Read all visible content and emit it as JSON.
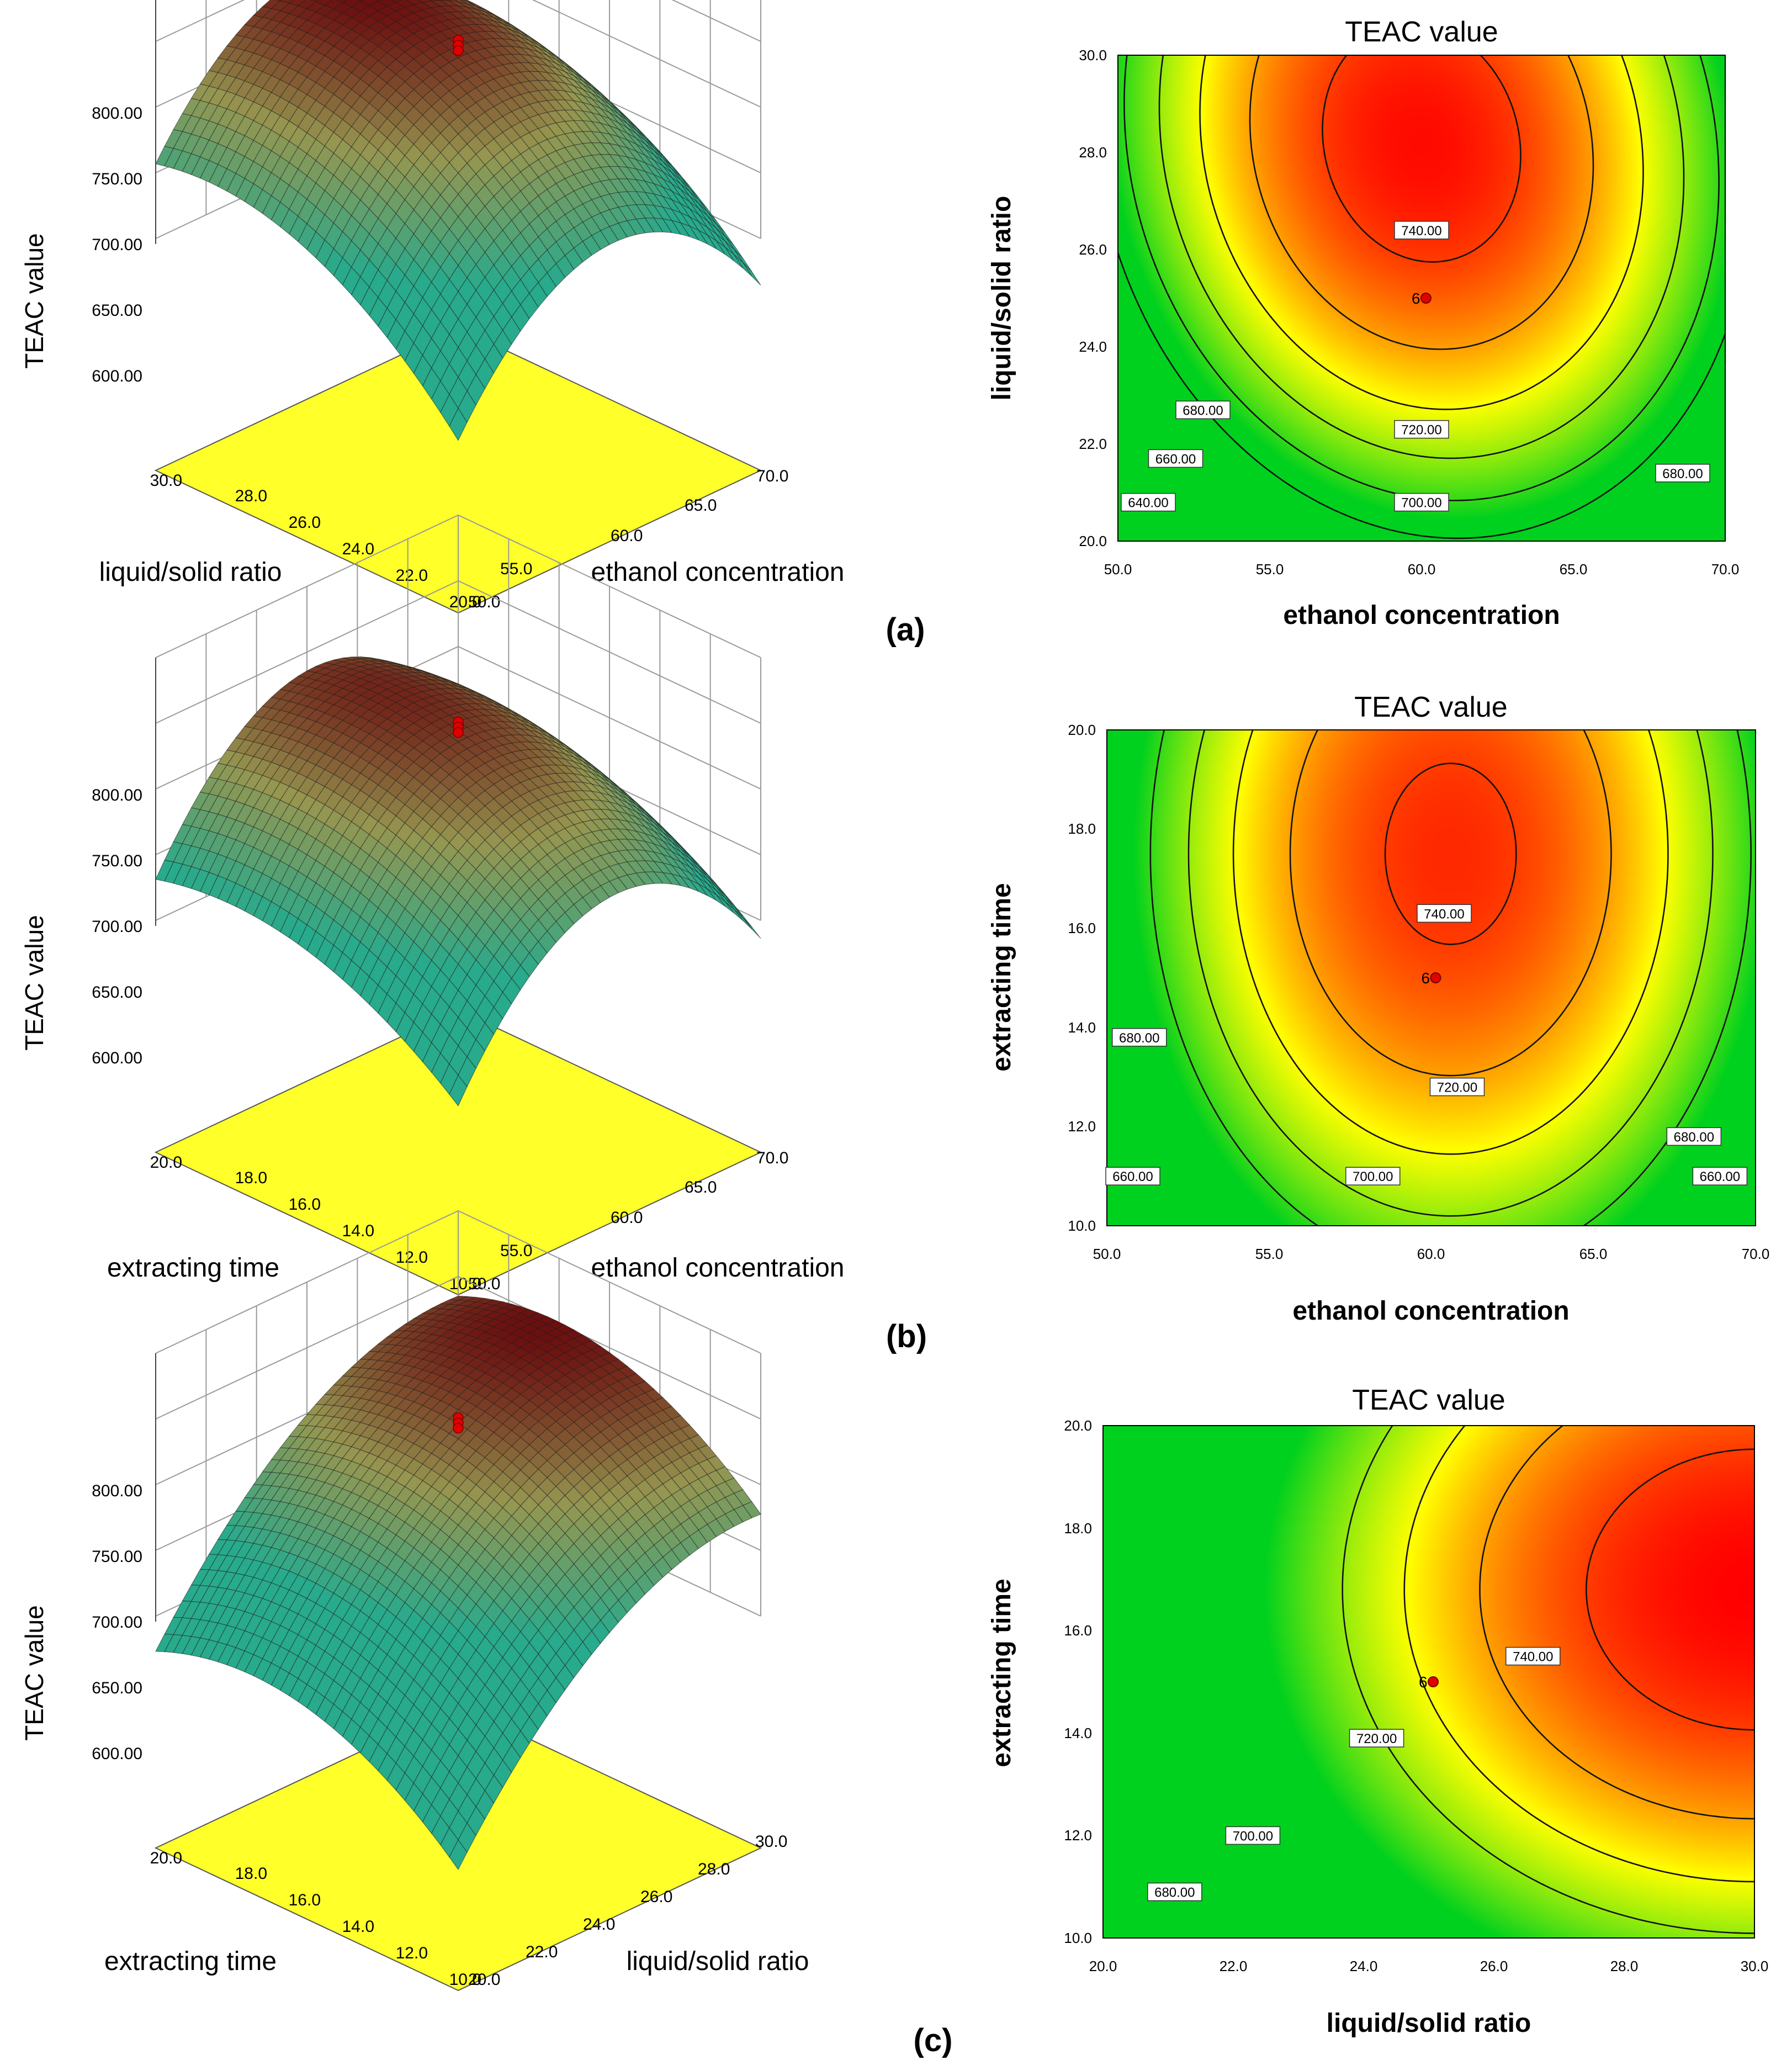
{
  "figure": {
    "colors": {
      "low": "#00d11e",
      "mid": "#ffff00",
      "high": "#ff0000",
      "dark": "#6b0f0f",
      "floor": "#ffff2a",
      "line": "#000000",
      "point": "#e00000"
    },
    "panels": [
      {
        "panel_label": "(a)",
        "surface": {
          "zlabel": "TEAC value",
          "zticks": [
            "600.00",
            "650.00",
            "700.00",
            "750.00",
            "800.00"
          ],
          "left_axis_label": "liquid/solid ratio",
          "left_ticks": [
            "20.0",
            "22.0",
            "24.0",
            "26.0",
            "28.0",
            "30.0"
          ],
          "right_axis_label": "ethanol concentration",
          "right_ticks": [
            "50.0",
            "55.0",
            "60.0",
            "65.0",
            "70.0"
          ]
        },
        "contour": {
          "title": "TEAC value",
          "xlabel": "ethanol concentration",
          "ylabel": "liquid/solid ratio",
          "xticks": [
            "50.0",
            "55.0",
            "60.0",
            "65.0",
            "70.0"
          ],
          "yticks": [
            "20.0",
            "22.0",
            "24.0",
            "26.0",
            "28.0",
            "30.0"
          ],
          "contour_labels": [
            "740.00",
            "720.00",
            "700.00",
            "680.00",
            "660.00",
            "640.00",
            "680.00"
          ],
          "center_label": "6"
        }
      },
      {
        "panel_label": "(b)",
        "surface": {
          "zlabel": "TEAC value",
          "zticks": [
            "600.00",
            "650.00",
            "700.00",
            "750.00",
            "800.00"
          ],
          "left_axis_label": "extracting time",
          "left_ticks": [
            "10.0",
            "12.0",
            "14.0",
            "16.0",
            "18.0",
            "20.0"
          ],
          "right_axis_label": "ethanol concentration",
          "right_ticks": [
            "50.0",
            "55.0",
            "60.0",
            "65.0",
            "70.0"
          ]
        },
        "contour": {
          "title": "TEAC value",
          "xlabel": "ethanol concentration",
          "ylabel": "extracting time",
          "xticks": [
            "50.0",
            "55.0",
            "60.0",
            "65.0",
            "70.0"
          ],
          "yticks": [
            "10.0",
            "12.0",
            "14.0",
            "16.0",
            "18.0",
            "20.0"
          ],
          "contour_labels": [
            "740.00",
            "720.00",
            "700.00",
            "680.00",
            "660.00",
            "680.00",
            "660.00"
          ],
          "center_label": "6"
        }
      },
      {
        "panel_label": "(c)",
        "surface": {
          "zlabel": "TEAC value",
          "zticks": [
            "600.00",
            "650.00",
            "700.00",
            "750.00",
            "800.00"
          ],
          "left_axis_label": "extracting time",
          "left_ticks": [
            "10.0",
            "12.0",
            "14.0",
            "16.0",
            "18.0",
            "20.0"
          ],
          "right_axis_label": "liquid/solid ratio",
          "right_ticks": [
            "20.0",
            "22.0",
            "24.0",
            "26.0",
            "28.0",
            "30.0"
          ]
        },
        "contour": {
          "title": "TEAC value",
          "xlabel": "liquid/solid ratio",
          "ylabel": "extracting time",
          "xticks": [
            "20.0",
            "22.0",
            "24.0",
            "26.0",
            "28.0",
            "30.0"
          ],
          "yticks": [
            "10.0",
            "12.0",
            "14.0",
            "16.0",
            "18.0",
            "20.0"
          ],
          "contour_labels": [
            "740.00",
            "720.00",
            "700.00",
            "680.00"
          ],
          "center_label": "6"
        }
      }
    ]
  },
  "chart_data": [
    {
      "type": "surface",
      "title": "",
      "zlabel": "TEAC value",
      "zlim": [
        600,
        800
      ],
      "xlabel": "liquid/solid ratio",
      "xlim": [
        20,
        30
      ],
      "ylabel": "ethanol concentration",
      "ylim": [
        50,
        70
      ],
      "center": {
        "ratio": 25,
        "ethanol": 60,
        "teac": 745
      },
      "model": {
        "optimum": {
          "ethanol": 60,
          "ratio": 28
        },
        "peak": 752,
        "curvature_ethanol": 90,
        "curvature_ratio": 40,
        "interaction": 12
      }
    },
    {
      "type": "contour",
      "title": "TEAC value",
      "xlabel": "ethanol concentration",
      "xlim": [
        50,
        70
      ],
      "ylabel": "liquid/solid ratio",
      "ylim": [
        20,
        30
      ],
      "levels": [
        640,
        660,
        680,
        700,
        720,
        740
      ],
      "design_points": [
        {
          "x": 60,
          "y": 25,
          "n": 6
        }
      ],
      "model": {
        "x0": 60,
        "y0": 28.2,
        "peak": 750,
        "a": 95,
        "b": 42,
        "c": 14
      }
    },
    {
      "type": "surface",
      "title": "",
      "zlabel": "TEAC value",
      "zlim": [
        600,
        800
      ],
      "xlabel": "extracting time",
      "xlim": [
        10,
        20
      ],
      "ylabel": "ethanol concentration",
      "ylim": [
        50,
        70
      ],
      "center": {
        "time": 15,
        "ethanol": 60,
        "teac": 745
      },
      "model": {
        "optimum": {
          "ethanol": 60.5,
          "time": 17.5
        },
        "peak": 744,
        "curvature_ethanol": 95,
        "curvature_time": 32,
        "interaction": 0
      }
    },
    {
      "type": "contour",
      "title": "TEAC value",
      "xlabel": "ethanol concentration",
      "xlim": [
        50,
        70
      ],
      "ylabel": "extracting time",
      "ylim": [
        10,
        20
      ],
      "levels": [
        660,
        680,
        700,
        720,
        740
      ],
      "design_points": [
        {
          "x": 60,
          "y": 15,
          "n": 6
        }
      ],
      "model": {
        "x0": 60.6,
        "y0": 17.5,
        "peak": 744,
        "a": 98,
        "b": 30,
        "c": 0
      }
    },
    {
      "type": "surface",
      "title": "",
      "zlabel": "TEAC value",
      "zlim": [
        600,
        800
      ],
      "xlabel": "extracting time",
      "xlim": [
        10,
        20
      ],
      "ylabel": "liquid/solid ratio",
      "ylim": [
        20,
        30
      ],
      "center": {
        "time": 15,
        "ratio": 25,
        "teac": 745
      },
      "model": {
        "optimum": {
          "ratio": 29.5,
          "time": 16.8
        },
        "peak": 752,
        "curvature_ratio": 45,
        "curvature_time": 40,
        "interaction": 0
      }
    },
    {
      "type": "contour",
      "title": "TEAC value",
      "xlabel": "liquid/solid ratio",
      "xlim": [
        20,
        30
      ],
      "ylabel": "extracting time",
      "ylim": [
        10,
        20
      ],
      "levels": [
        680,
        700,
        720,
        740
      ],
      "design_points": [
        {
          "x": 25,
          "y": 15,
          "n": 6
        }
      ],
      "model": {
        "x0": 30,
        "y0": 16.8,
        "peak": 752,
        "a": 45,
        "b": 40,
        "c": 0
      }
    }
  ]
}
